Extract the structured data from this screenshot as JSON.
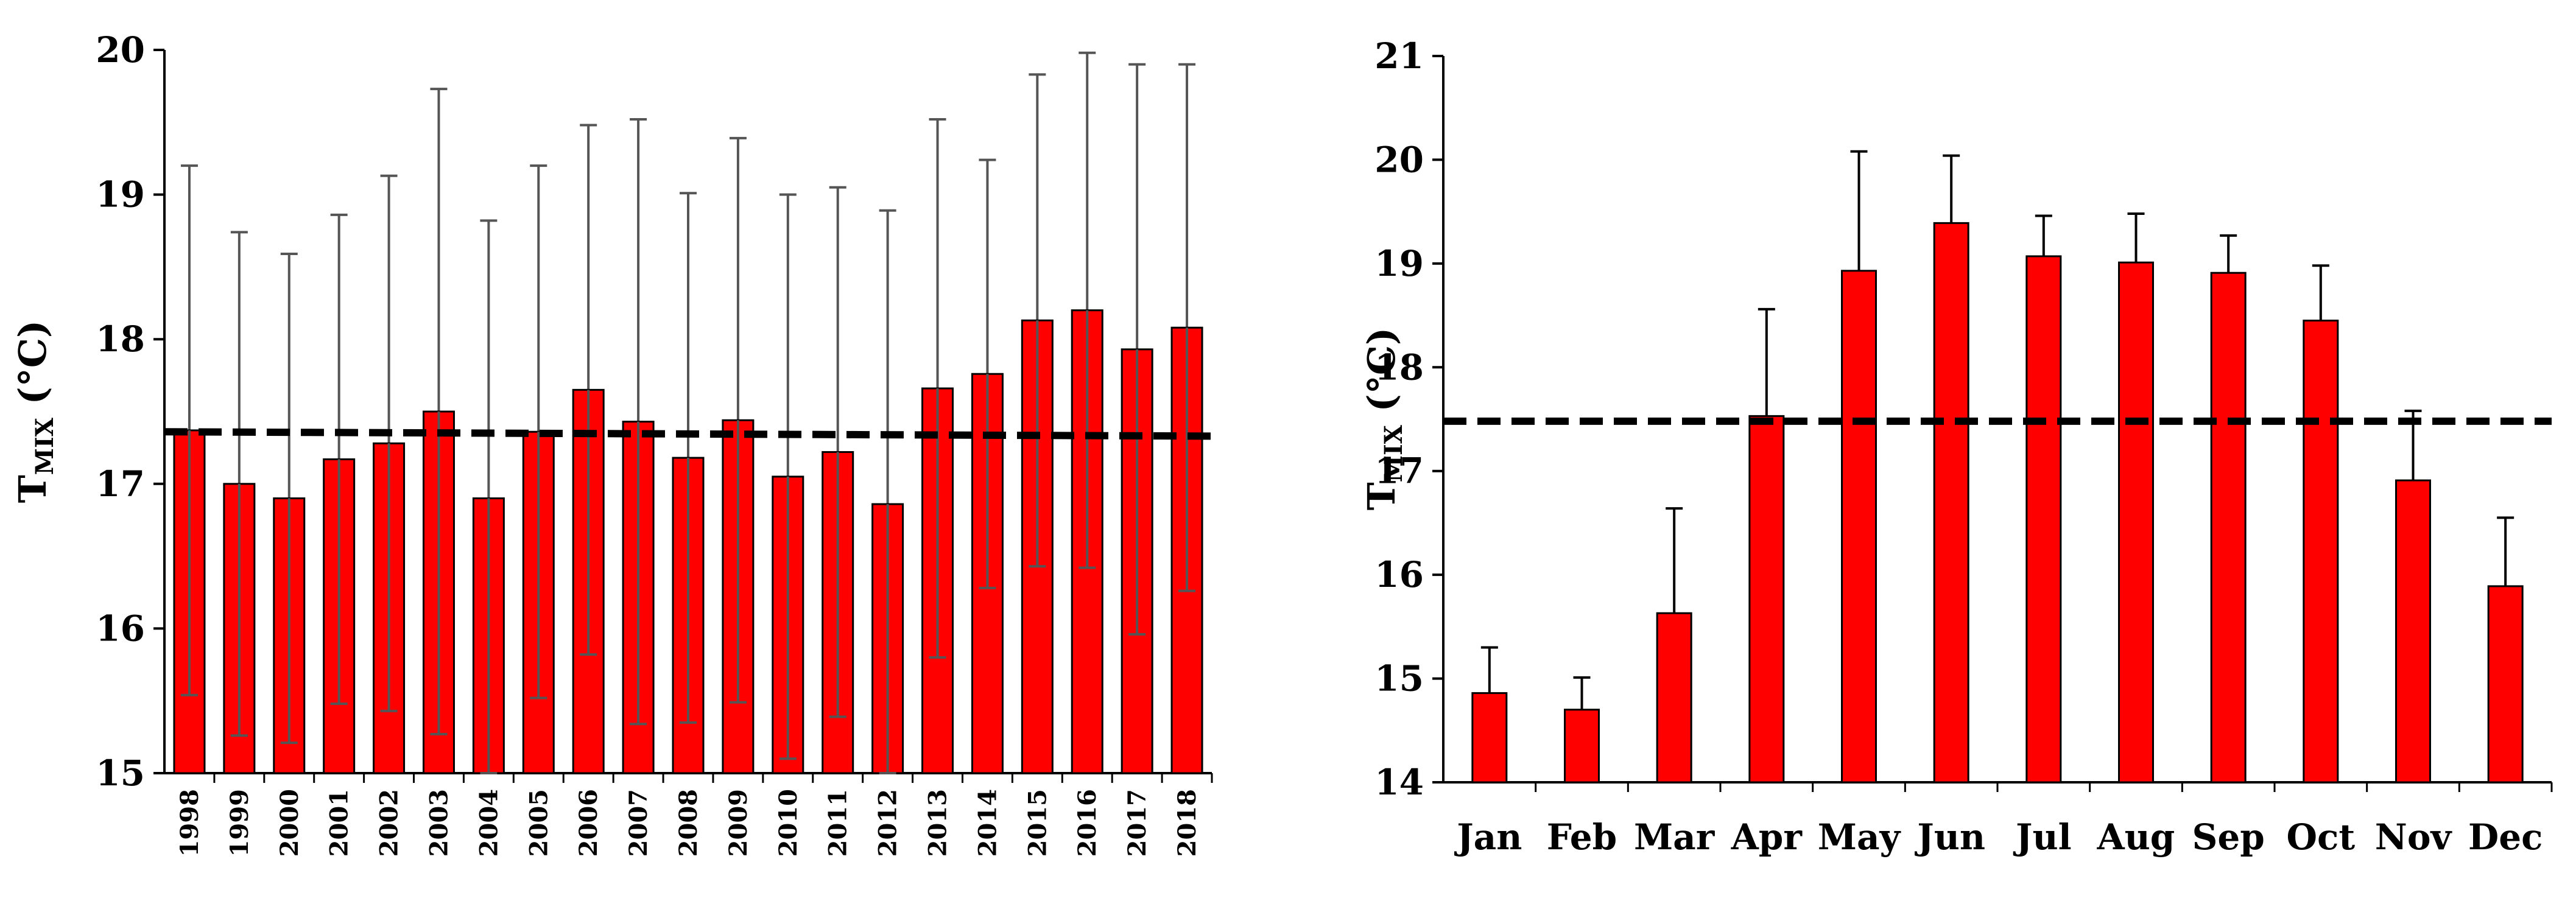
{
  "colors": {
    "bar_fill": "#ff0000",
    "bar_stroke": "#000000",
    "error_bar": "#555555",
    "reference_line": "#000000",
    "background": "#ffffff"
  },
  "chart_data": [
    {
      "type": "bar",
      "ylabel_main": "T",
      "ylabel_sub": "MIX",
      "ylabel_unit": "(°C)",
      "ylim": [
        15,
        20
      ],
      "yticks": [
        "15",
        "16",
        "17",
        "18",
        "19",
        "20"
      ],
      "categories": [
        "1998",
        "1999",
        "2000",
        "2001",
        "2002",
        "2003",
        "2004",
        "2005",
        "2006",
        "2007",
        "2008",
        "2009",
        "2010",
        "2011",
        "2012",
        "2013",
        "2014",
        "2015",
        "2016",
        "2017",
        "2018"
      ],
      "values": [
        17.37,
        17.0,
        16.9,
        17.17,
        17.28,
        17.5,
        16.9,
        17.36,
        17.65,
        17.43,
        17.18,
        17.44,
        17.05,
        17.22,
        16.86,
        17.66,
        17.76,
        18.13,
        18.2,
        17.93,
        18.08
      ],
      "errors": [
        1.83,
        1.74,
        1.69,
        1.69,
        1.85,
        2.23,
        1.92,
        1.84,
        1.83,
        2.09,
        1.83,
        1.95,
        1.95,
        1.83,
        2.03,
        1.86,
        1.48,
        1.7,
        1.78,
        1.97,
        1.82
      ],
      "error_lower": true,
      "trend_line": {
        "start": 17.36,
        "end": 17.33,
        "style": "dashed"
      },
      "grid": false,
      "legend": "none"
    },
    {
      "type": "bar",
      "ylabel_main": "T",
      "ylabel_sub": "MIX",
      "ylabel_unit": "(°C)",
      "ylim": [
        14,
        21
      ],
      "yticks": [
        "14",
        "15",
        "16",
        "17",
        "18",
        "19",
        "20",
        "21"
      ],
      "categories": [
        "Jan",
        "Feb",
        "Mar",
        "Apr",
        "May",
        "Jun",
        "Jul",
        "Aug",
        "Sep",
        "Oct",
        "Nov",
        "Dec"
      ],
      "values": [
        14.86,
        14.7,
        15.63,
        17.53,
        18.93,
        19.39,
        19.07,
        19.01,
        18.91,
        18.45,
        16.91,
        15.89
      ],
      "errors": [
        0.44,
        0.31,
        1.01,
        1.03,
        1.15,
        0.65,
        0.39,
        0.47,
        0.36,
        0.53,
        0.67,
        0.66
      ],
      "error_lower": false,
      "trend_line": {
        "start": 17.48,
        "end": 17.48,
        "style": "dashed"
      },
      "grid": false,
      "legend": "none"
    }
  ]
}
